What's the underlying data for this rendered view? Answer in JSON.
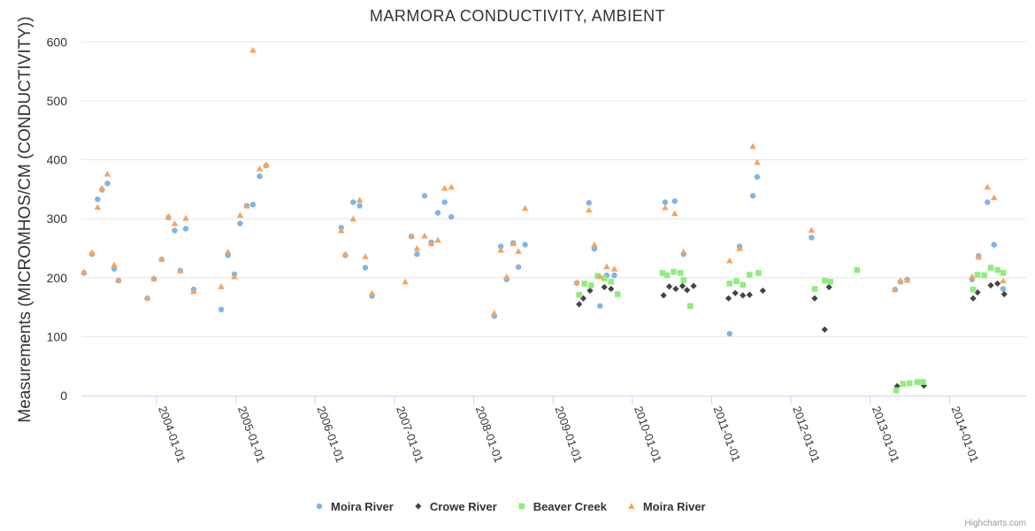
{
  "chart_data": {
    "type": "scatter",
    "title": "MARMORA CONDUCTIVITY, AMBIENT",
    "ylabel": "Measurements (MICROMHOS/CM (CONDUCTIVITY))",
    "xlabel": "",
    "ylim": [
      0,
      620
    ],
    "yticks": [
      0,
      100,
      200,
      300,
      400,
      500,
      600
    ],
    "xlim": [
      "2003-01-20",
      "2014-12-20"
    ],
    "xticks": [
      "2004-01-01",
      "2005-01-01",
      "2006-01-01",
      "2007-01-01",
      "2008-01-01",
      "2009-01-01",
      "2010-01-01",
      "2011-01-01",
      "2012-01-01",
      "2013-01-01",
      "2014-01-01"
    ],
    "grid": "horizontal",
    "legend_position": "bottom-center",
    "series": [
      {
        "name": "Moira River",
        "marker": "circle",
        "color": "#7cb5ec",
        "points": [
          [
            "2003-02-01",
            208
          ],
          [
            "2003-03-10",
            240
          ],
          [
            "2003-04-05",
            333
          ],
          [
            "2003-04-25",
            349
          ],
          [
            "2003-05-20",
            360
          ],
          [
            "2003-06-20",
            215
          ],
          [
            "2003-07-10",
            195
          ],
          [
            "2003-11-20",
            165
          ],
          [
            "2003-12-20",
            198
          ],
          [
            "2004-01-25",
            231
          ],
          [
            "2004-02-25",
            302
          ],
          [
            "2004-03-25",
            280
          ],
          [
            "2004-04-20",
            212
          ],
          [
            "2004-05-15",
            283
          ],
          [
            "2004-06-20",
            180
          ],
          [
            "2004-10-25",
            146
          ],
          [
            "2004-11-25",
            238
          ],
          [
            "2004-12-25",
            206
          ],
          [
            "2005-01-20",
            292
          ],
          [
            "2005-02-20",
            322
          ],
          [
            "2005-03-20",
            324
          ],
          [
            "2005-04-20",
            372
          ],
          [
            "2005-05-20",
            390
          ],
          [
            "2006-05-01",
            285
          ],
          [
            "2006-05-20",
            238
          ],
          [
            "2006-06-25",
            328
          ],
          [
            "2006-07-25",
            322
          ],
          [
            "2006-08-20",
            217
          ],
          [
            "2006-09-20",
            169
          ],
          [
            "2007-03-20",
            270
          ],
          [
            "2007-04-15",
            240
          ],
          [
            "2007-05-20",
            339
          ],
          [
            "2007-06-20",
            260
          ],
          [
            "2007-07-20",
            310
          ],
          [
            "2007-08-20",
            328
          ],
          [
            "2007-09-20",
            303
          ],
          [
            "2008-04-05",
            135
          ],
          [
            "2008-05-05",
            253
          ],
          [
            "2008-06-01",
            197
          ],
          [
            "2008-07-01",
            259
          ],
          [
            "2008-07-25",
            218
          ],
          [
            "2008-08-25",
            256
          ],
          [
            "2009-04-20",
            191
          ],
          [
            "2009-06-15",
            327
          ],
          [
            "2009-07-10",
            249
          ],
          [
            "2009-08-05",
            152
          ],
          [
            "2009-09-05",
            204
          ],
          [
            "2009-10-10",
            204
          ],
          [
            "2010-06-01",
            328
          ],
          [
            "2010-07-15",
            330
          ],
          [
            "2010-08-25",
            240
          ],
          [
            "2011-03-25",
            105
          ],
          [
            "2011-05-10",
            253
          ],
          [
            "2011-07-10",
            339
          ],
          [
            "2011-07-30",
            371
          ],
          [
            "2012-04-05",
            268
          ],
          [
            "2013-04-25",
            180
          ],
          [
            "2013-05-20",
            193
          ],
          [
            "2013-06-20",
            197
          ],
          [
            "2014-04-15",
            197
          ],
          [
            "2014-05-15",
            237
          ],
          [
            "2014-06-25",
            328
          ],
          [
            "2014-07-25",
            256
          ],
          [
            "2014-09-05",
            181
          ]
        ]
      },
      {
        "name": "Crowe River",
        "marker": "diamond",
        "color": "#434348",
        "points": [
          [
            "2009-05-01",
            155
          ],
          [
            "2009-05-20",
            165
          ],
          [
            "2009-06-20",
            178
          ],
          [
            "2009-08-25",
            184
          ],
          [
            "2009-09-25",
            181
          ],
          [
            "2010-05-25",
            170
          ],
          [
            "2010-06-20",
            185
          ],
          [
            "2010-07-20",
            181
          ],
          [
            "2010-08-20",
            186
          ],
          [
            "2010-09-10",
            179
          ],
          [
            "2010-10-10",
            186
          ],
          [
            "2011-03-20",
            165
          ],
          [
            "2011-04-20",
            174
          ],
          [
            "2011-05-25",
            170
          ],
          [
            "2011-06-25",
            171
          ],
          [
            "2011-08-25",
            178
          ],
          [
            "2012-04-20",
            165
          ],
          [
            "2012-06-05",
            112
          ],
          [
            "2012-06-25",
            184
          ],
          [
            "2013-05-05",
            16
          ],
          [
            "2013-09-05",
            17
          ],
          [
            "2014-04-20",
            165
          ],
          [
            "2014-05-10",
            175
          ],
          [
            "2014-07-10",
            187
          ],
          [
            "2014-08-10",
            190
          ],
          [
            "2014-09-10",
            172
          ]
        ]
      },
      {
        "name": "Beaver Creek",
        "marker": "square",
        "color": "#90ed7d",
        "points": [
          [
            "2009-05-01",
            171
          ],
          [
            "2009-05-25",
            190
          ],
          [
            "2009-06-25",
            187
          ],
          [
            "2009-07-25",
            203
          ],
          [
            "2009-08-25",
            199
          ],
          [
            "2009-09-25",
            193
          ],
          [
            "2009-10-25",
            172
          ],
          [
            "2010-05-20",
            208
          ],
          [
            "2010-06-10",
            204
          ],
          [
            "2010-07-10",
            210
          ],
          [
            "2010-08-10",
            208
          ],
          [
            "2010-08-25",
            196
          ],
          [
            "2010-09-25",
            152
          ],
          [
            "2011-03-25",
            190
          ],
          [
            "2011-04-25",
            194
          ],
          [
            "2011-05-25",
            188
          ],
          [
            "2011-06-25",
            205
          ],
          [
            "2011-08-05",
            208
          ],
          [
            "2012-04-20",
            181
          ],
          [
            "2012-06-05",
            195
          ],
          [
            "2012-07-01",
            193
          ],
          [
            "2012-11-01",
            213
          ],
          [
            "2013-05-01",
            9
          ],
          [
            "2013-06-01",
            20
          ],
          [
            "2013-07-01",
            21
          ],
          [
            "2013-08-05",
            23
          ],
          [
            "2013-09-01",
            23
          ],
          [
            "2014-04-20",
            180
          ],
          [
            "2014-05-10",
            205
          ],
          [
            "2014-06-10",
            204
          ],
          [
            "2014-07-10",
            217
          ],
          [
            "2014-08-10",
            213
          ],
          [
            "2014-09-05",
            208
          ]
        ]
      },
      {
        "name": "Moira River",
        "marker": "triangle",
        "color": "#f7a35c",
        "points": [
          [
            "2003-02-01",
            210
          ],
          [
            "2003-03-10",
            243
          ],
          [
            "2003-04-05",
            320
          ],
          [
            "2003-04-25",
            352
          ],
          [
            "2003-05-20",
            376
          ],
          [
            "2003-06-20",
            222
          ],
          [
            "2003-07-10",
            196
          ],
          [
            "2003-11-20",
            166
          ],
          [
            "2003-12-20",
            199
          ],
          [
            "2004-01-25",
            232
          ],
          [
            "2004-02-25",
            304
          ],
          [
            "2004-03-25",
            292
          ],
          [
            "2004-04-20",
            212
          ],
          [
            "2004-05-15",
            301
          ],
          [
            "2004-06-20",
            177
          ],
          [
            "2004-10-25",
            185
          ],
          [
            "2004-11-25",
            244
          ],
          [
            "2004-12-25",
            202
          ],
          [
            "2005-01-20",
            306
          ],
          [
            "2005-02-20",
            322
          ],
          [
            "2005-03-20",
            586
          ],
          [
            "2005-04-20",
            385
          ],
          [
            "2005-05-20",
            392
          ],
          [
            "2006-05-01",
            280
          ],
          [
            "2006-05-20",
            240
          ],
          [
            "2006-06-25",
            300
          ],
          [
            "2006-07-25",
            332
          ],
          [
            "2006-08-20",
            236
          ],
          [
            "2006-09-20",
            174
          ],
          [
            "2007-02-20",
            193
          ],
          [
            "2007-03-20",
            271
          ],
          [
            "2007-04-15",
            250
          ],
          [
            "2007-05-20",
            271
          ],
          [
            "2007-06-20",
            258
          ],
          [
            "2007-07-20",
            264
          ],
          [
            "2007-08-20",
            352
          ],
          [
            "2007-09-20",
            354
          ],
          [
            "2008-04-05",
            140
          ],
          [
            "2008-05-05",
            247
          ],
          [
            "2008-06-01",
            202
          ],
          [
            "2008-07-01",
            258
          ],
          [
            "2008-07-25",
            245
          ],
          [
            "2008-08-25",
            318
          ],
          [
            "2009-04-20",
            192
          ],
          [
            "2009-06-15",
            315
          ],
          [
            "2009-07-10",
            256
          ],
          [
            "2009-08-05",
            202
          ],
          [
            "2009-09-05",
            219
          ],
          [
            "2009-10-10",
            215
          ],
          [
            "2010-06-01",
            319
          ],
          [
            "2010-07-15",
            309
          ],
          [
            "2010-08-25",
            244
          ],
          [
            "2011-03-25",
            229
          ],
          [
            "2011-05-10",
            250
          ],
          [
            "2011-07-10",
            423
          ],
          [
            "2011-07-30",
            396
          ],
          [
            "2012-04-05",
            281
          ],
          [
            "2013-04-25",
            180
          ],
          [
            "2013-05-20",
            195
          ],
          [
            "2013-06-20",
            196
          ],
          [
            "2014-04-15",
            202
          ],
          [
            "2014-05-15",
            235
          ],
          [
            "2014-06-25",
            354
          ],
          [
            "2014-07-25",
            336
          ],
          [
            "2014-09-05",
            195
          ]
        ]
      }
    ]
  },
  "credits": "Highcharts.com"
}
